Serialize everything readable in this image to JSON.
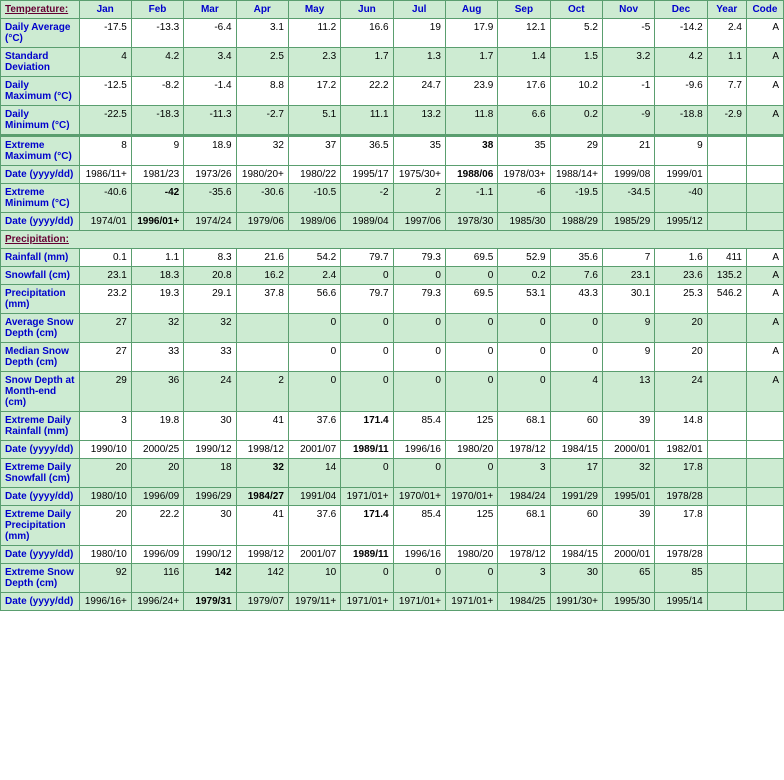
{
  "headers": [
    "Temperature:",
    "Jan",
    "Feb",
    "Mar",
    "Apr",
    "May",
    "Jun",
    "Jul",
    "Aug",
    "Sep",
    "Oct",
    "Nov",
    "Dec",
    "Year",
    "Code"
  ],
  "precip_header": "Precipitation:",
  "temp_rows": [
    {
      "label": "Daily Average (°C)",
      "cls": "white",
      "vals": [
        "-17.5",
        "-13.3",
        "-6.4",
        "3.1",
        "11.2",
        "16.6",
        "19",
        "17.9",
        "12.1",
        "5.2",
        "-5",
        "-14.2",
        "2.4",
        "A"
      ]
    },
    {
      "label": "Standard Deviation",
      "cls": "green",
      "vals": [
        "4",
        "4.2",
        "3.4",
        "2.5",
        "2.3",
        "1.7",
        "1.3",
        "1.7",
        "1.4",
        "1.5",
        "3.2",
        "4.2",
        "1.1",
        "A"
      ]
    },
    {
      "label": "Daily Maximum (°C)",
      "cls": "white",
      "vals": [
        "-12.5",
        "-8.2",
        "-1.4",
        "8.8",
        "17.2",
        "22.2",
        "24.7",
        "23.9",
        "17.6",
        "10.2",
        "-1",
        "-9.6",
        "7.7",
        "A"
      ]
    },
    {
      "label": "Daily Minimum (°C)",
      "cls": "green",
      "vals": [
        "-22.5",
        "-18.3",
        "-11.3",
        "-2.7",
        "5.1",
        "11.1",
        "13.2",
        "11.8",
        "6.6",
        "0.2",
        "-9",
        "-18.8",
        "-2.9",
        "A"
      ]
    },
    {
      "label": "Extreme Maximum (°C)",
      "cls": "white",
      "divider": true,
      "vals": [
        "8",
        "9",
        "18.9",
        "32",
        "37",
        "36.5",
        "35",
        "38",
        "35",
        "29",
        "21",
        "9",
        "",
        ""
      ],
      "bold": [
        7
      ]
    },
    {
      "label": "Date (yyyy/dd)",
      "cls": "white",
      "vals": [
        "1986/11+",
        "1981/23",
        "1973/26",
        "1980/20+",
        "1980/22",
        "1995/17",
        "1975/30+",
        "1988/06",
        "1978/03+",
        "1988/14+",
        "1999/08",
        "1999/01",
        "",
        ""
      ],
      "bold": [
        7
      ]
    },
    {
      "label": "Extreme Minimum (°C)",
      "cls": "green",
      "vals": [
        "-40.6",
        "-42",
        "-35.6",
        "-30.6",
        "-10.5",
        "-2",
        "2",
        "-1.1",
        "-6",
        "-19.5",
        "-34.5",
        "-40",
        "",
        ""
      ],
      "bold": [
        1
      ]
    },
    {
      "label": "Date (yyyy/dd)",
      "cls": "green",
      "vals": [
        "1974/01",
        "1996/01+",
        "1974/24",
        "1979/06",
        "1989/06",
        "1989/04",
        "1997/06",
        "1978/30",
        "1985/30",
        "1988/29",
        "1985/29",
        "1995/12",
        "",
        ""
      ],
      "bold": [
        1
      ]
    }
  ],
  "precip_rows": [
    {
      "label": "Rainfall (mm)",
      "cls": "white",
      "vals": [
        "0.1",
        "1.1",
        "8.3",
        "21.6",
        "54.2",
        "79.7",
        "79.3",
        "69.5",
        "52.9",
        "35.6",
        "7",
        "1.6",
        "411",
        "A"
      ]
    },
    {
      "label": "Snowfall (cm)",
      "cls": "green",
      "vals": [
        "23.1",
        "18.3",
        "20.8",
        "16.2",
        "2.4",
        "0",
        "0",
        "0",
        "0.2",
        "7.6",
        "23.1",
        "23.6",
        "135.2",
        "A"
      ]
    },
    {
      "label": "Precipitation (mm)",
      "cls": "white",
      "vals": [
        "23.2",
        "19.3",
        "29.1",
        "37.8",
        "56.6",
        "79.7",
        "79.3",
        "69.5",
        "53.1",
        "43.3",
        "30.1",
        "25.3",
        "546.2",
        "A"
      ]
    },
    {
      "label": "Average Snow Depth (cm)",
      "cls": "green",
      "vals": [
        "27",
        "32",
        "32",
        "",
        "0",
        "0",
        "0",
        "0",
        "0",
        "0",
        "9",
        "20",
        "",
        "A"
      ]
    },
    {
      "label": "Median Snow Depth (cm)",
      "cls": "white",
      "vals": [
        "27",
        "33",
        "33",
        "",
        "0",
        "0",
        "0",
        "0",
        "0",
        "0",
        "9",
        "20",
        "",
        "A"
      ]
    },
    {
      "label": "Snow Depth at Month-end (cm)",
      "cls": "green",
      "vals": [
        "29",
        "36",
        "24",
        "2",
        "0",
        "0",
        "0",
        "0",
        "0",
        "4",
        "13",
        "24",
        "",
        "A"
      ]
    },
    {
      "label": "Extreme Daily Rainfall (mm)",
      "cls": "white",
      "vals": [
        "3",
        "19.8",
        "30",
        "41",
        "37.6",
        "171.4",
        "85.4",
        "125",
        "68.1",
        "60",
        "39",
        "14.8",
        "",
        ""
      ],
      "bold": [
        5
      ]
    },
    {
      "label": "Date (yyyy/dd)",
      "cls": "white",
      "vals": [
        "1990/10",
        "2000/25",
        "1990/12",
        "1998/12",
        "2001/07",
        "1989/11",
        "1996/16",
        "1980/20",
        "1978/12",
        "1984/15",
        "2000/01",
        "1982/01",
        "",
        ""
      ],
      "bold": [
        5
      ]
    },
    {
      "label": "Extreme Daily Snowfall (cm)",
      "cls": "green",
      "vals": [
        "20",
        "20",
        "18",
        "32",
        "14",
        "0",
        "0",
        "0",
        "3",
        "17",
        "32",
        "17.8",
        "",
        ""
      ],
      "bold": [
        3
      ]
    },
    {
      "label": "Date (yyyy/dd)",
      "cls": "green",
      "vals": [
        "1980/10",
        "1996/09",
        "1996/29",
        "1984/27",
        "1991/04",
        "1971/01+",
        "1970/01+",
        "1970/01+",
        "1984/24",
        "1991/29",
        "1995/01",
        "1978/28",
        "",
        ""
      ],
      "bold": [
        3
      ]
    },
    {
      "label": "Extreme Daily Precipitation (mm)",
      "cls": "white",
      "vals": [
        "20",
        "22.2",
        "30",
        "41",
        "37.6",
        "171.4",
        "85.4",
        "125",
        "68.1",
        "60",
        "39",
        "17.8",
        "",
        ""
      ],
      "bold": [
        5
      ]
    },
    {
      "label": "Date (yyyy/dd)",
      "cls": "white",
      "vals": [
        "1980/10",
        "1996/09",
        "1990/12",
        "1998/12",
        "2001/07",
        "1989/11",
        "1996/16",
        "1980/20",
        "1978/12",
        "1984/15",
        "2000/01",
        "1978/28",
        "",
        ""
      ],
      "bold": [
        5
      ]
    },
    {
      "label": "Extreme Snow Depth (cm)",
      "cls": "green",
      "vals": [
        "92",
        "116",
        "142",
        "142",
        "10",
        "0",
        "0",
        "0",
        "3",
        "30",
        "65",
        "85",
        "",
        ""
      ],
      "bold": [
        2
      ]
    },
    {
      "label": "Date (yyyy/dd)",
      "cls": "green",
      "vals": [
        "1996/16+",
        "1996/24+",
        "1979/31",
        "1979/07",
        "1979/11+",
        "1971/01+",
        "1971/01+",
        "1971/01+",
        "1984/25",
        "1991/30+",
        "1995/30",
        "1995/14",
        "",
        ""
      ],
      "bold": [
        2
      ]
    }
  ]
}
